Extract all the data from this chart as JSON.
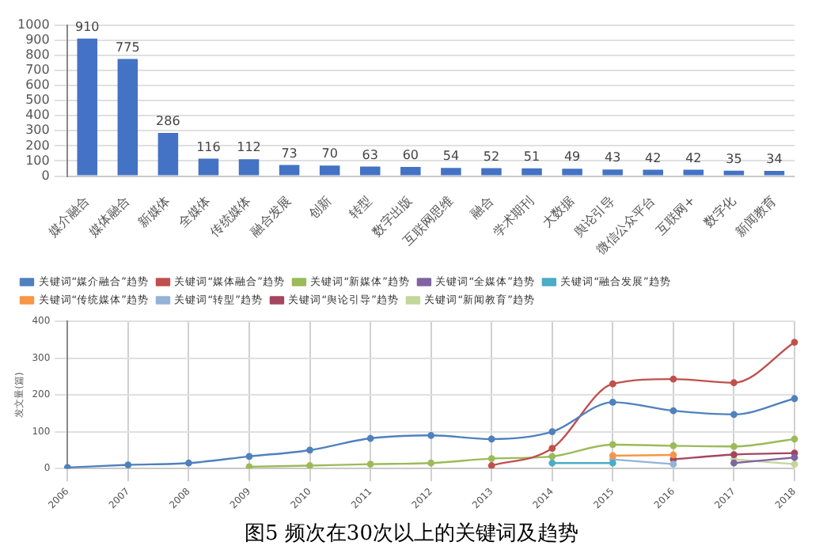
{
  "chart_data": [
    {
      "type": "bar",
      "categories": [
        "媒介融合",
        "媒体融合",
        "新媒体",
        "全媒体",
        "传统媒体",
        "融合发展",
        "创新",
        "转型",
        "数字出版",
        "互联网思维",
        "融合",
        "学术期刊",
        "大数据",
        "舆论引导",
        "微信公众平台",
        "互联网+",
        "数字化",
        "新闻教育"
      ],
      "values": [
        910,
        775,
        286,
        116,
        112,
        73,
        70,
        63,
        60,
        54,
        52,
        51,
        49,
        43,
        42,
        42,
        35,
        34
      ],
      "color": "#4472c4",
      "ylim": [
        0,
        1000
      ],
      "yticks": [
        0,
        100,
        200,
        300,
        400,
        500,
        600,
        700,
        800,
        900,
        1000
      ],
      "grid": "y",
      "data_labels": true
    },
    {
      "type": "line",
      "ylabel": "发文量(篇)",
      "categories": [
        "2006",
        "2007",
        "2008",
        "2009",
        "2010",
        "2011",
        "2012",
        "2013",
        "2014",
        "2015",
        "2016",
        "2017",
        "2018"
      ],
      "series": [
        {
          "name": "关键词“媒介融合”趋势",
          "color": "#4f81bd",
          "values": [
            3,
            10,
            15,
            33,
            50,
            82,
            90,
            80,
            100,
            180,
            157,
            147,
            190
          ]
        },
        {
          "name": "关键词“媒体融合”趋势",
          "color": "#c0504d",
          "values": [
            null,
            null,
            null,
            null,
            null,
            null,
            null,
            8,
            55,
            230,
            243,
            233,
            343
          ]
        },
        {
          "name": "关键词“新媒体”趋势",
          "color": "#9bbb59",
          "values": [
            null,
            null,
            null,
            5,
            8,
            12,
            15,
            27,
            33,
            65,
            62,
            60,
            80
          ]
        },
        {
          "name": "关键词“全媒体”趋势",
          "color": "#8064a2",
          "values": [
            null,
            null,
            null,
            null,
            null,
            null,
            null,
            null,
            null,
            null,
            null,
            15,
            30
          ]
        },
        {
          "name": "关键词“融合发展”趋势",
          "color": "#4bacc6",
          "values": [
            null,
            null,
            null,
            null,
            null,
            null,
            null,
            null,
            15,
            15,
            null,
            null,
            null
          ]
        },
        {
          "name": "关键词“传统媒体”趋势",
          "color": "#f79646",
          "values": [
            null,
            null,
            null,
            null,
            null,
            null,
            null,
            null,
            null,
            35,
            37,
            null,
            null
          ]
        },
        {
          "name": "关键词“转型”趋势",
          "color": "#95b3d7",
          "values": [
            null,
            null,
            null,
            null,
            null,
            null,
            null,
            null,
            null,
            25,
            12,
            null,
            null
          ]
        },
        {
          "name": "关键词“舆论引导”趋势",
          "color": "#a5455f",
          "values": [
            null,
            null,
            null,
            null,
            null,
            null,
            null,
            null,
            null,
            null,
            25,
            38,
            42
          ]
        },
        {
          "name": "关键词“新闻教育”趋势",
          "color": "#c3d69b",
          "values": [
            null,
            null,
            null,
            null,
            null,
            null,
            null,
            null,
            null,
            null,
            null,
            25,
            12
          ]
        }
      ],
      "ylim": [
        0,
        400
      ],
      "yticks": [
        0,
        100,
        200,
        300,
        400
      ],
      "grid": true,
      "legend": "top",
      "marker": "circle",
      "line_style": "solid",
      "annotations": [
        "图5  频次在30次以上的关键词及趋势"
      ]
    }
  ]
}
